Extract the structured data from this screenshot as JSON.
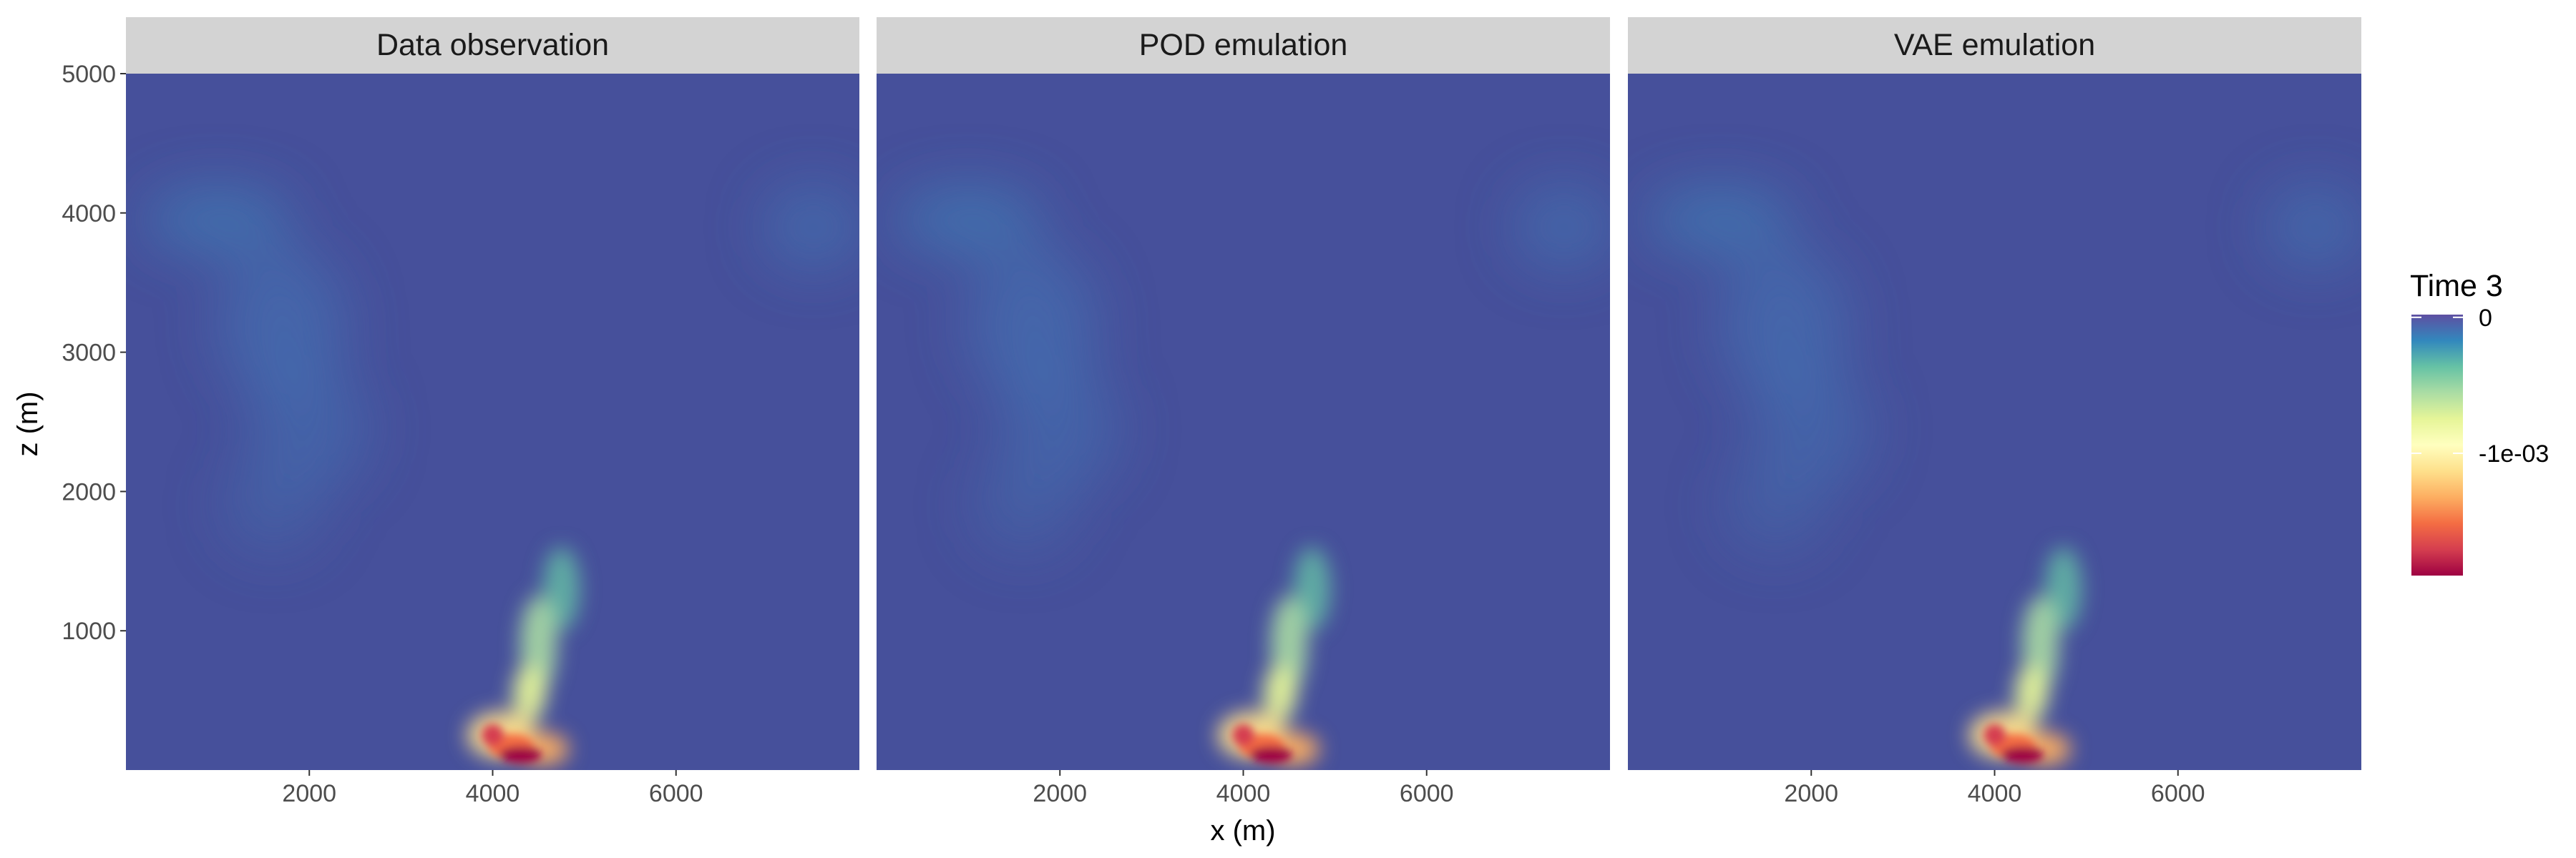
{
  "chart_data": {
    "type": "heatmap",
    "panels": [
      {
        "title": "Data observation"
      },
      {
        "title": "POD emulation"
      },
      {
        "title": "VAE emulation"
      }
    ],
    "xlabel": "x (m)",
    "ylabel": "z (m)",
    "x_ticks": [
      2000,
      4000,
      6000
    ],
    "x_tick_labels": [
      "2000",
      "4000",
      "6000"
    ],
    "y_ticks": [
      1000,
      2000,
      3000,
      4000,
      5000
    ],
    "y_tick_labels": [
      "1000",
      "2000",
      "3000",
      "4000",
      "5000"
    ],
    "xlim": [
      0,
      8000
    ],
    "ylim": [
      0,
      5000
    ],
    "legend": {
      "title": "Time 3",
      "ticks": [
        0,
        -0.001
      ],
      "tick_labels": [
        "0",
        "-1e-03"
      ],
      "range": [
        -0.0019,
        2e-05
      ],
      "placement": "right",
      "palette": "Spectral"
    },
    "colors": {
      "background": "#46509b",
      "strip": "#d3d3d3",
      "low": "#9e0142",
      "high": "#5e4fa2"
    }
  }
}
